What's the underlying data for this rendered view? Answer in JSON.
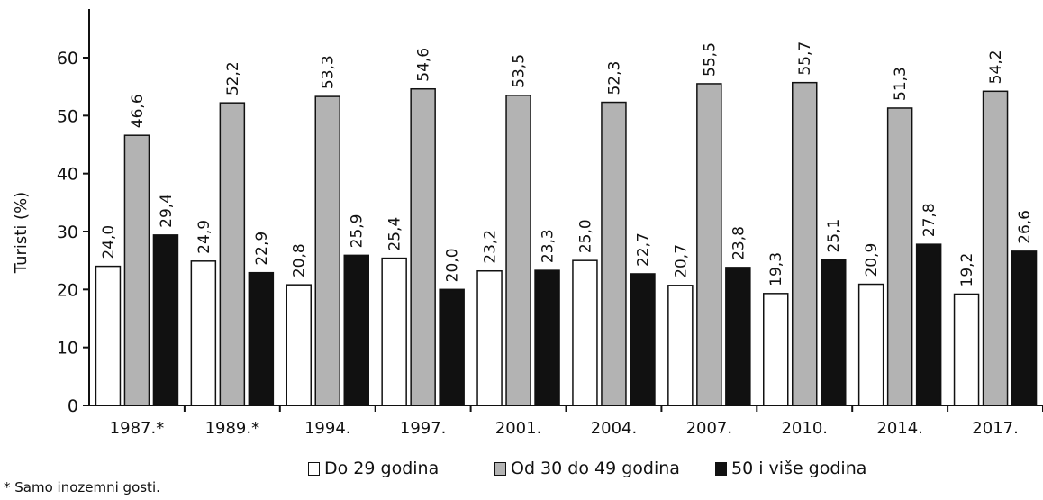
{
  "chart_data": {
    "type": "bar",
    "categories": [
      "1987.*",
      "1989.*",
      "1994.",
      "1997.",
      "2001.",
      "2004.",
      "2007.",
      "2010.",
      "2014.",
      "2017."
    ],
    "series": [
      {
        "name": "Do 29 godina",
        "color": "#ffffff",
        "values": [
          24.0,
          24.9,
          20.8,
          25.4,
          23.2,
          25.0,
          20.7,
          19.3,
          20.9,
          19.2
        ],
        "labels": [
          "24,0",
          "24,9",
          "20,8",
          "25,4",
          "23,2",
          "25,0",
          "20,7",
          "19,3",
          "20,9",
          "19,2"
        ]
      },
      {
        "name": "Od 30 do 49 godina",
        "color": "#b3b3b3",
        "values": [
          46.6,
          52.2,
          53.3,
          54.6,
          53.5,
          52.3,
          55.5,
          55.7,
          51.3,
          54.2
        ],
        "labels": [
          "46,6",
          "52,2",
          "53,3",
          "54,6",
          "53,5",
          "52,3",
          "55,5",
          "55,7",
          "51,3",
          "54,2"
        ]
      },
      {
        "name": "50 i više godina",
        "color": "#111111",
        "values": [
          29.4,
          22.9,
          25.9,
          20.0,
          23.3,
          22.7,
          23.8,
          25.1,
          27.8,
          26.6
        ],
        "labels": [
          "29,4",
          "22,9",
          "25,9",
          "20,0",
          "23,3",
          "22,7",
          "23,8",
          "25,1",
          "27,8",
          "26,6"
        ]
      }
    ],
    "ylabel": "Turisti (%)",
    "xlabel": "",
    "ylim": [
      0,
      60
    ],
    "yticks": [
      "0",
      "10",
      "20",
      "30",
      "40",
      "50",
      "60"
    ],
    "grid": false,
    "legend_position": "bottom"
  },
  "footnote": "* Samo inozemni gosti."
}
